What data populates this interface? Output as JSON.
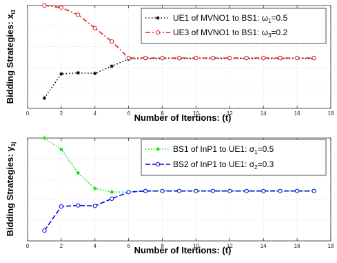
{
  "chart_data": [
    {
      "type": "line",
      "xlabel": "Number of Itertions: (t)",
      "ylabel_text": "Bidding Strategies: x",
      "ylabel_sub": "i1",
      "xlim": [
        0,
        18
      ],
      "ylim": [
        0,
        10
      ],
      "xticks": [
        "0",
        "2",
        "4",
        "6",
        "8",
        "10",
        "12",
        "14",
        "16",
        "18"
      ],
      "grid": true,
      "legend_position": "top-right",
      "series": [
        {
          "legend_prefix": "UE1 of MVNO1 to BS1: ",
          "greek": "ω",
          "greek_sub": "1",
          "legend_suffix": "=0.5",
          "color": "#000000",
          "marker": "star",
          "dash": "1.5,3",
          "x": [
            1,
            2,
            3,
            4,
            5,
            6,
            7,
            8,
            9,
            10,
            11,
            12,
            13,
            14,
            15,
            16,
            17
          ],
          "y": [
            1.0,
            3.35,
            3.45,
            3.4,
            4.1,
            4.8,
            4.85,
            4.85,
            4.85,
            4.85,
            4.85,
            4.85,
            4.85,
            4.85,
            4.85,
            4.85,
            4.85
          ]
        },
        {
          "legend_prefix": "UE3 of MVNO1 to BS1: ",
          "greek": "ω",
          "greek_sub": "3",
          "legend_suffix": "=0.2",
          "color": "#e41a1c",
          "marker": "circle",
          "dash": "7,3,2,3",
          "x": [
            1,
            2,
            3,
            4,
            5,
            6,
            7,
            8,
            9,
            10,
            11,
            12,
            13,
            14,
            15,
            16,
            17
          ],
          "y": [
            10.0,
            9.8,
            9.1,
            7.8,
            6.5,
            4.9,
            4.9,
            4.9,
            4.9,
            4.9,
            4.9,
            4.9,
            4.9,
            4.9,
            4.9,
            4.9,
            4.9
          ]
        }
      ]
    },
    {
      "type": "line",
      "xlabel": "Number of Itertions: (t)",
      "ylabel_text": "Bidding Strategies: y",
      "ylabel_sub": "1j",
      "xlim": [
        0,
        18
      ],
      "ylim": [
        0,
        10
      ],
      "xticks": [
        "0",
        "2",
        "4",
        "6",
        "8",
        "10",
        "12",
        "14",
        "16",
        "18"
      ],
      "grid": true,
      "legend_position": "top-right",
      "series": [
        {
          "legend_prefix": "BS1 of InP1 to UE1: ",
          "greek": "σ",
          "greek_sub": "1",
          "legend_suffix": "=0.5",
          "color": "#00e000",
          "marker": "star",
          "dash": "1.5,2.5",
          "x": [
            1,
            2,
            3,
            4,
            5,
            6,
            7,
            8,
            9,
            10,
            11,
            12,
            13,
            14,
            15,
            16,
            17
          ],
          "y": [
            10.0,
            8.9,
            6.6,
            5.1,
            4.75,
            4.75,
            4.85,
            4.85,
            4.85,
            4.85,
            4.85,
            4.85,
            4.85,
            4.85,
            4.85,
            4.85,
            4.85
          ]
        },
        {
          "legend_prefix": "BS2 of InP1 to UE1: ",
          "greek": "σ",
          "greek_sub": "2",
          "legend_suffix": "=0.3",
          "color": "#0000e0",
          "marker": "circle",
          "dash": "7,3",
          "x": [
            1,
            2,
            3,
            4,
            5,
            6,
            7,
            8,
            9,
            10,
            11,
            12,
            13,
            14,
            15,
            16,
            17
          ],
          "y": [
            1.0,
            3.35,
            3.45,
            3.4,
            4.1,
            4.75,
            4.85,
            4.85,
            4.85,
            4.85,
            4.85,
            4.85,
            4.85,
            4.85,
            4.85,
            4.85,
            4.85
          ]
        }
      ]
    }
  ]
}
